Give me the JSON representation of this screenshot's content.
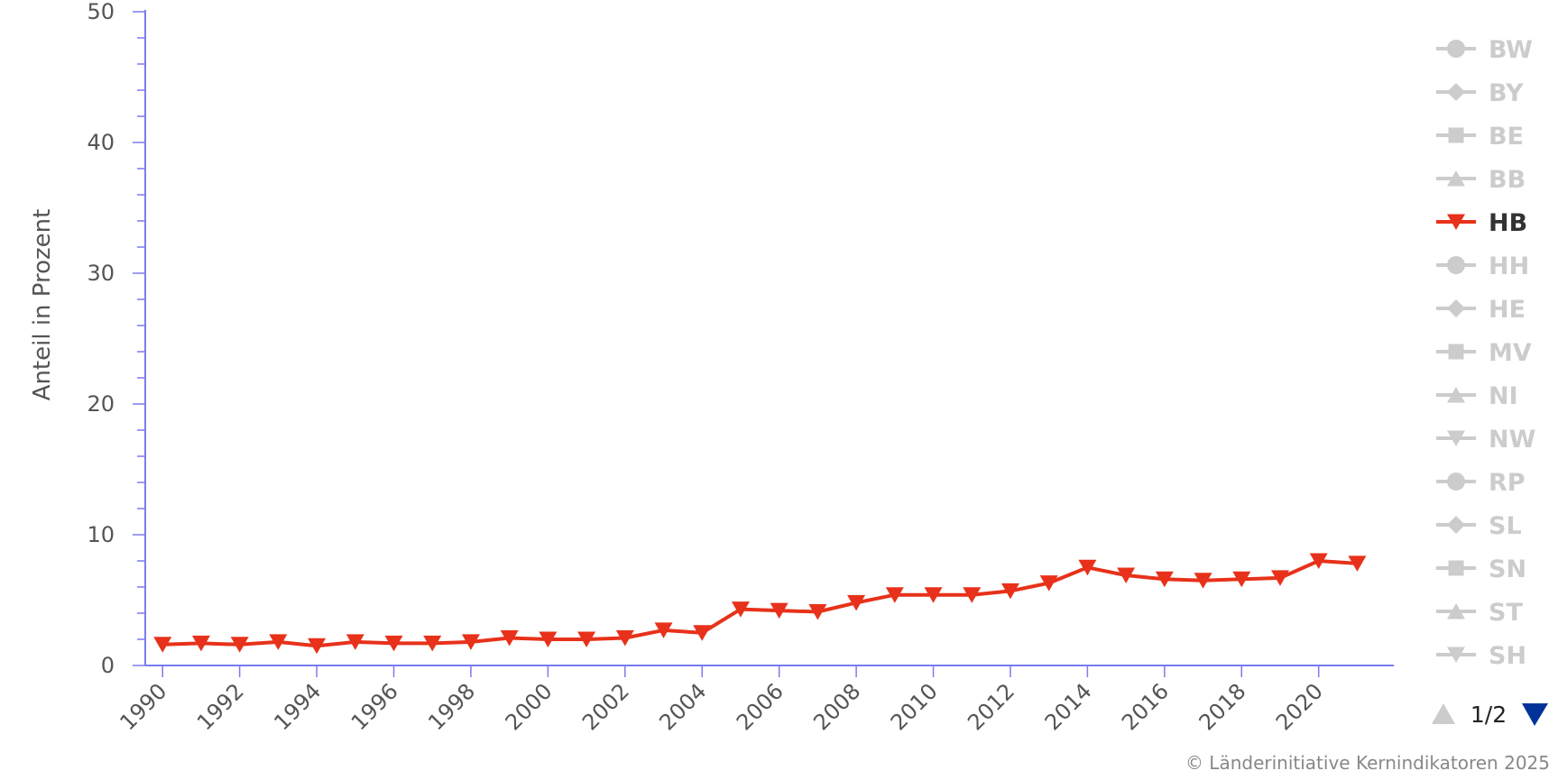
{
  "chart_data": {
    "type": "line",
    "title": "",
    "xlabel": "",
    "ylabel": "Anteil in Prozent",
    "ylim": [
      0,
      50
    ],
    "yticks": [
      0,
      10,
      20,
      30,
      40,
      50
    ],
    "xticks": [
      1990,
      1992,
      1994,
      1996,
      1998,
      2000,
      2002,
      2004,
      2006,
      2008,
      2010,
      2012,
      2014,
      2016,
      2018,
      2020
    ],
    "x": [
      1990,
      1991,
      1992,
      1993,
      1994,
      1995,
      1996,
      1997,
      1998,
      1999,
      2000,
      2001,
      2002,
      2003,
      2004,
      2005,
      2006,
      2007,
      2008,
      2009,
      2010,
      2011,
      2012,
      2013,
      2014,
      2015,
      2016,
      2017,
      2018,
      2019,
      2020,
      2021
    ],
    "series": [
      {
        "name": "HB",
        "color": "#e8311a",
        "marker": "triangle-down",
        "visible": true,
        "values": [
          1.6,
          1.7,
          1.6,
          1.8,
          1.5,
          1.8,
          1.7,
          1.7,
          1.8,
          2.1,
          2.0,
          2.0,
          2.1,
          2.7,
          2.5,
          4.3,
          4.2,
          4.1,
          4.8,
          5.4,
          5.4,
          5.4,
          5.7,
          6.3,
          7.5,
          6.9,
          6.6,
          6.5,
          6.6,
          6.7,
          8.0,
          7.8
        ]
      }
    ],
    "legend": {
      "position": "right",
      "items": [
        {
          "label": "BW",
          "marker": "circle",
          "active": false
        },
        {
          "label": "BY",
          "marker": "diamond",
          "active": false
        },
        {
          "label": "BE",
          "marker": "square",
          "active": false
        },
        {
          "label": "BB",
          "marker": "triangle",
          "active": false
        },
        {
          "label": "HB",
          "marker": "triangle-down",
          "active": true
        },
        {
          "label": "HH",
          "marker": "circle",
          "active": false
        },
        {
          "label": "HE",
          "marker": "diamond",
          "active": false
        },
        {
          "label": "MV",
          "marker": "square",
          "active": false
        },
        {
          "label": "NI",
          "marker": "triangle",
          "active": false
        },
        {
          "label": "NW",
          "marker": "triangle-down",
          "active": false
        },
        {
          "label": "RP",
          "marker": "circle",
          "active": false
        },
        {
          "label": "SL",
          "marker": "diamond",
          "active": false
        },
        {
          "label": "SN",
          "marker": "square",
          "active": false
        },
        {
          "label": "ST",
          "marker": "triangle",
          "active": false
        },
        {
          "label": "SH",
          "marker": "triangle-down",
          "active": false
        }
      ],
      "page_indicator": "1/2"
    },
    "credits": "© Länderinitiative Kernindikatoren 2025",
    "colors": {
      "axis": "#7b7bf0",
      "inactive": "#cccccc",
      "active_text": "#333333",
      "nav_up": "#cccccc",
      "nav_down": "#003399"
    }
  }
}
